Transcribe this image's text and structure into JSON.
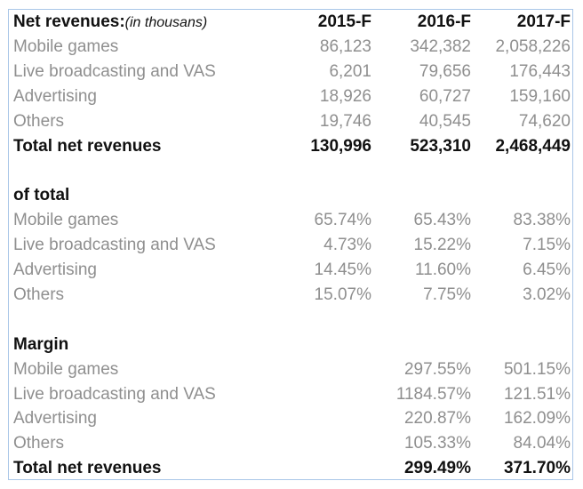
{
  "header": {
    "label": "Net revenues:",
    "note": "(in thousans)",
    "columns": [
      "2015-F",
      "2016-F",
      "2017-F"
    ]
  },
  "sections": [
    {
      "title": null,
      "rows": [
        {
          "label": "Mobile games",
          "values": [
            "86,123",
            "342,382",
            "2,058,226"
          ]
        },
        {
          "label": "Live broadcasting and VAS",
          "values": [
            "6,201",
            "79,656",
            "176,443"
          ]
        },
        {
          "label": "Advertising",
          "values": [
            "18,926",
            "60,727",
            "159,160"
          ]
        },
        {
          "label": "Others",
          "values": [
            "19,746",
            "40,545",
            "74,620"
          ]
        },
        {
          "label": "Total net revenues",
          "values": [
            "130,996",
            "523,310",
            "2,468,449"
          ],
          "bold": true
        }
      ]
    },
    {
      "title": "of total",
      "rows": [
        {
          "label": "Mobile games",
          "values": [
            "65.74%",
            "65.43%",
            "83.38%"
          ]
        },
        {
          "label": "Live broadcasting and VAS",
          "values": [
            "4.73%",
            "15.22%",
            "7.15%"
          ]
        },
        {
          "label": "Advertising",
          "values": [
            "14.45%",
            "11.60%",
            "6.45%"
          ]
        },
        {
          "label": "Others",
          "values": [
            "15.07%",
            "7.75%",
            "3.02%"
          ]
        }
      ]
    },
    {
      "title": "Margin",
      "rows": [
        {
          "label": "Mobile games",
          "values": [
            "",
            "297.55%",
            "501.15%"
          ]
        },
        {
          "label": "Live broadcasting and VAS",
          "values": [
            "",
            "1184.57%",
            "121.51%"
          ]
        },
        {
          "label": "Advertising",
          "values": [
            "",
            "220.87%",
            "162.09%"
          ]
        },
        {
          "label": "Others",
          "values": [
            "",
            "105.33%",
            "84.04%"
          ]
        },
        {
          "label": "Total net revenues",
          "values": [
            "",
            "299.49%",
            "371.70%"
          ],
          "bold": true
        }
      ]
    }
  ],
  "colors": {
    "border": "#a9c6e8",
    "muted_text": "#8f8f8f",
    "bold_text": "#111111"
  }
}
